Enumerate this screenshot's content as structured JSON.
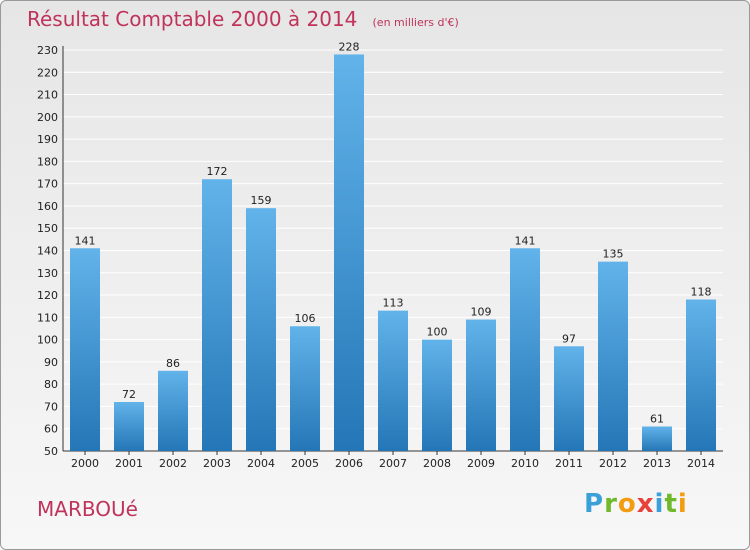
{
  "title": "Résultat Comptable 2000 à 2014",
  "subtitle": "(en milliers d'€)",
  "commune": "MARBOUé",
  "logo": {
    "letters": [
      "P",
      "r",
      "o",
      "x",
      "i",
      "t",
      "i"
    ],
    "colors": [
      "#3aa0d8",
      "#6fb92a",
      "#f39c12",
      "#e8413c",
      "#3aa0d8",
      "#6fb92a",
      "#f39c12"
    ]
  },
  "colors": {
    "bar_top": "#62b3ea",
    "bar_bottom": "#2476b6",
    "title": "#c0335a"
  },
  "chart_data": {
    "type": "bar",
    "categories": [
      "2000",
      "2001",
      "2002",
      "2003",
      "2004",
      "2005",
      "2006",
      "2007",
      "2008",
      "2009",
      "2010",
      "2011",
      "2012",
      "2013",
      "2014"
    ],
    "values": [
      141,
      72,
      86,
      172,
      159,
      106,
      228,
      113,
      100,
      109,
      141,
      97,
      135,
      61,
      118
    ],
    "ylim": [
      50,
      230
    ],
    "yticks": [
      50,
      60,
      70,
      80,
      90,
      100,
      110,
      120,
      130,
      140,
      150,
      160,
      170,
      180,
      190,
      200,
      210,
      220,
      230
    ],
    "grid": true,
    "data_labels": true
  }
}
